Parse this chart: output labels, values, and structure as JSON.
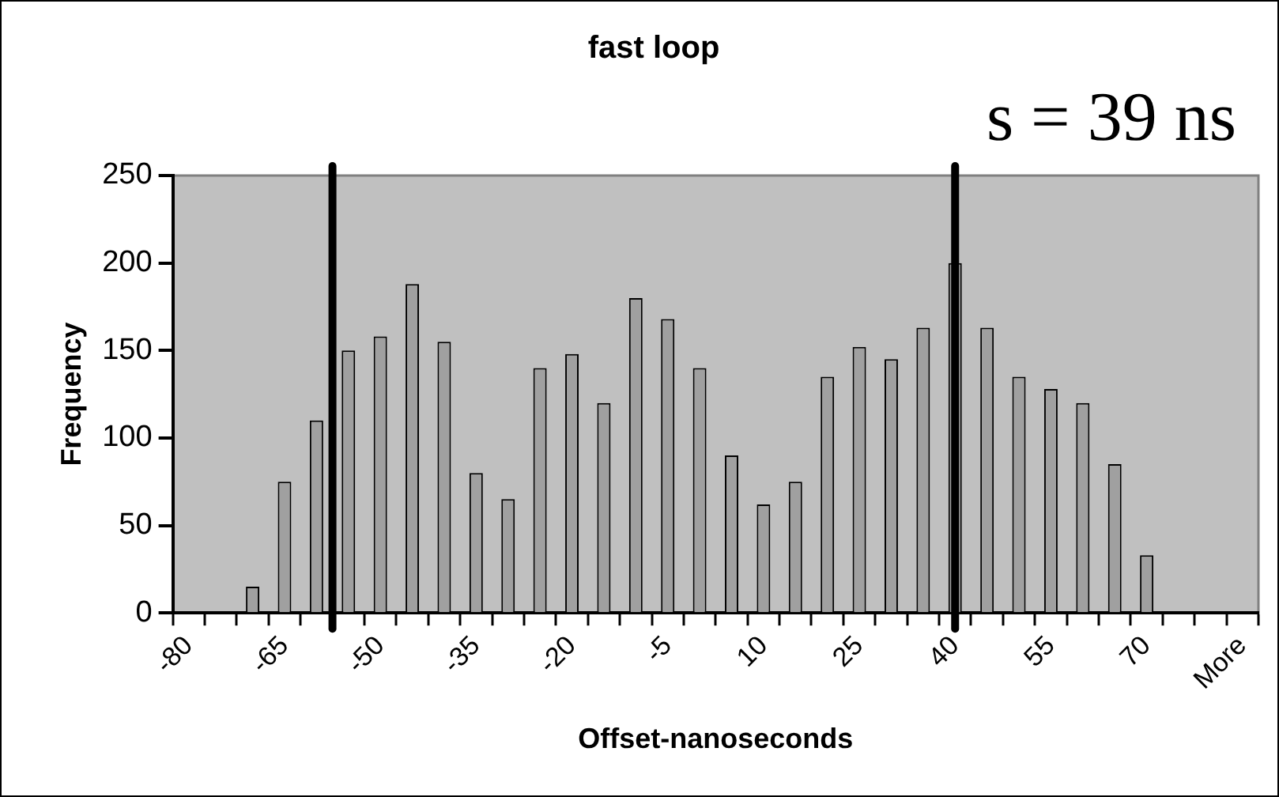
{
  "chart_data": {
    "type": "bar",
    "title": "fast loop",
    "xlabel": "Offset-nanoseconds",
    "ylabel": "Frequency",
    "annotations": [
      "s = 39 ns"
    ],
    "categories": [
      "-80",
      null,
      null,
      "-65",
      null,
      null,
      "-50",
      null,
      null,
      "-35",
      null,
      null,
      "-20",
      null,
      null,
      "-5",
      null,
      null,
      "10",
      null,
      null,
      "25",
      null,
      null,
      "40",
      null,
      null,
      "55",
      null,
      null,
      "70",
      null,
      null,
      "More"
    ],
    "values": [
      0,
      0,
      15,
      75,
      110,
      150,
      158,
      188,
      155,
      80,
      65,
      140,
      148,
      120,
      180,
      168,
      140,
      90,
      62,
      75,
      135,
      152,
      145,
      163,
      200,
      163,
      135,
      128,
      120,
      85,
      33,
      0,
      0,
      0
    ],
    "color": "#a0a0a0",
    "ylim": [
      0,
      250
    ],
    "yticks": [
      0,
      50,
      100,
      150,
      200,
      250
    ],
    "grid": false,
    "legend": false,
    "ref_lines": [
      {
        "axis": "x",
        "value": "40",
        "color": "#000000"
      }
    ]
  }
}
